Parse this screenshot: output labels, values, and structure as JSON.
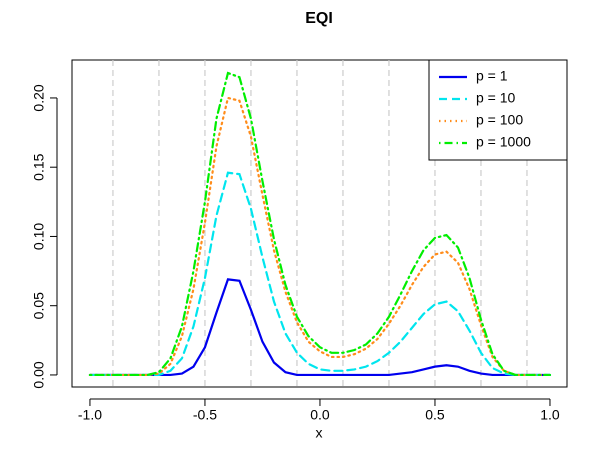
{
  "chart_data": {
    "type": "line",
    "title": "EQI",
    "x_label": "x",
    "x": [
      -1,
      -0.95,
      -0.9,
      -0.85,
      -0.8,
      -0.75,
      -0.7,
      -0.65,
      -0.6,
      -0.55,
      -0.5,
      -0.45,
      -0.4,
      -0.35,
      -0.3,
      -0.25,
      -0.2,
      -0.15,
      -0.1,
      -0.05,
      0,
      0.05,
      0.1,
      0.15,
      0.2,
      0.25,
      0.3,
      0.35,
      0.4,
      0.45,
      0.5,
      0.55,
      0.6,
      0.65,
      0.7,
      0.75,
      0.8,
      0.85,
      0.9,
      0.95,
      1
    ],
    "series": [
      {
        "name": "p = 1",
        "color": "#0000ee",
        "linestyle": "solid",
        "values": [
          0,
          0,
          0,
          0,
          0,
          0,
          0,
          0,
          0.001,
          0.006,
          0.02,
          0.045,
          0.069,
          0.068,
          0.047,
          0.024,
          0.009,
          0.002,
          0,
          0,
          0,
          0,
          0,
          0,
          0,
          0,
          0,
          0.001,
          0.002,
          0.004,
          0.006,
          0.007,
          0.006,
          0.003,
          0.001,
          0,
          0,
          0,
          0,
          0,
          0
        ]
      },
      {
        "name": "p = 10",
        "color": "#00e5ee",
        "linestyle": "dashed",
        "values": [
          0,
          0,
          0,
          0,
          0,
          0,
          0,
          0.003,
          0.012,
          0.035,
          0.07,
          0.115,
          0.146,
          0.145,
          0.12,
          0.085,
          0.053,
          0.03,
          0.016,
          0.008,
          0.004,
          0.003,
          0.003,
          0.004,
          0.006,
          0.01,
          0.016,
          0.024,
          0.034,
          0.044,
          0.051,
          0.053,
          0.046,
          0.032,
          0.016,
          0.005,
          0.001,
          0,
          0,
          0,
          0
        ]
      },
      {
        "name": "p = 100",
        "color": "#ff8c1a",
        "linestyle": "dotted",
        "values": [
          0,
          0,
          0,
          0,
          0,
          0,
          0.001,
          0.008,
          0.028,
          0.062,
          0.11,
          0.165,
          0.2,
          0.198,
          0.172,
          0.13,
          0.09,
          0.06,
          0.038,
          0.024,
          0.017,
          0.013,
          0.013,
          0.015,
          0.019,
          0.026,
          0.037,
          0.05,
          0.065,
          0.078,
          0.087,
          0.089,
          0.081,
          0.062,
          0.036,
          0.013,
          0.003,
          0,
          0,
          0,
          0
        ]
      },
      {
        "name": "p = 1000",
        "color": "#00ee00",
        "linestyle": "dotdash",
        "values": [
          0,
          0,
          0,
          0,
          0,
          0,
          0.002,
          0.012,
          0.035,
          0.075,
          0.125,
          0.185,
          0.218,
          0.215,
          0.185,
          0.14,
          0.098,
          0.065,
          0.042,
          0.028,
          0.02,
          0.016,
          0.016,
          0.018,
          0.022,
          0.03,
          0.042,
          0.058,
          0.075,
          0.09,
          0.099,
          0.101,
          0.092,
          0.07,
          0.04,
          0.015,
          0.003,
          0,
          0,
          0,
          0
        ]
      }
    ],
    "vlines": [
      -0.9,
      -0.7,
      -0.5,
      -0.3,
      -0.1,
      0.1,
      0.3,
      0.5,
      0.7,
      0.9
    ],
    "xlim": [
      -1.078,
      1.074
    ],
    "ylim": [
      -0.0087,
      0.2274
    ],
    "xticks": [
      {
        "value": -1,
        "label": "-1.0"
      },
      {
        "value": -0.5,
        "label": "-0.5"
      },
      {
        "value": 0,
        "label": "0.0"
      },
      0.5,
      {
        "value": 1,
        "label": "1.0"
      }
    ],
    "yticks": [
      {
        "value": 0,
        "label": "0.00"
      },
      0.05,
      {
        "value": 0.1,
        "label": "0.10"
      },
      0.15,
      {
        "value": 0.2,
        "label": "0.20"
      }
    ],
    "legend": "topright"
  }
}
